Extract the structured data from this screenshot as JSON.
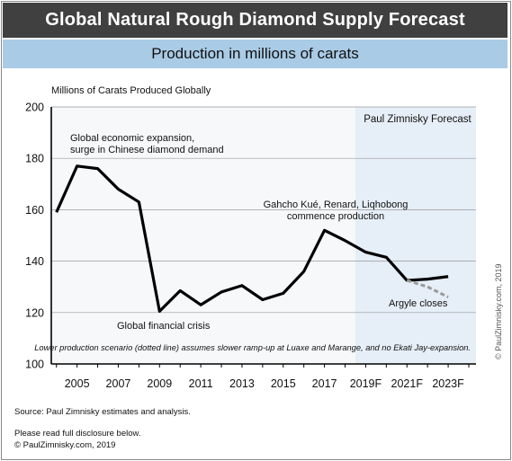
{
  "header": {
    "title": "Global Natural Rough Diamond Supply Forecast",
    "subtitle": "Production in millions of carats"
  },
  "chart_data": {
    "type": "line",
    "title": "Global Natural Rough Diamond Supply Forecast",
    "subtitle": "Production in millions of carats",
    "ylabel": "Millions of Carats Produced Globally",
    "xlabel": "",
    "ylim": [
      100,
      200
    ],
    "yticks": [
      100,
      120,
      140,
      160,
      180,
      200
    ],
    "xticks": [
      "2005",
      "2007",
      "2009",
      "2011",
      "2013",
      "2015",
      "2017",
      "2019F",
      "2021F",
      "2023F"
    ],
    "grid": "horizontal",
    "forecast_region_label": "Paul Zimnisky Forecast",
    "forecast_start": 2018.5,
    "x": [
      2004,
      2005,
      2006,
      2007,
      2008,
      2009,
      2010,
      2011,
      2012,
      2013,
      2014,
      2015,
      2016,
      2017,
      2018,
      2019,
      2020,
      2021,
      2022,
      2023
    ],
    "series": [
      {
        "values": [
          159,
          177,
          176,
          168,
          163,
          120.5,
          128.5,
          123,
          128,
          130.5,
          125,
          127.5,
          136,
          152,
          148,
          143.5,
          141.5,
          132.5,
          133,
          134
        ]
      },
      {
        "style": "dotted",
        "x": [
          2021,
          2022,
          2023
        ],
        "values": [
          132.5,
          130,
          126
        ]
      }
    ],
    "annotations": [
      {
        "lines": [
          "Global economic expansion,",
          "surge in Chinese diamond demand"
        ]
      },
      {
        "lines": [
          "Global financial crisis"
        ]
      },
      {
        "lines": [
          "Gahcho Kué, Renard, Liqhobong",
          "commence production"
        ]
      },
      {
        "lines": [
          "Argyle closes"
        ]
      }
    ],
    "footnote": "Lower production scenario (dotted line) assumes slower ramp-up at Luaxe and Marange, and no Ekati Jay-expansion."
  },
  "footer": {
    "source": "Source: Paul Zimnisky estimates and analysis.",
    "disclosure": "Please read full disclosure below.",
    "copyright": "© PaulZimnisky.com, 2019",
    "vertical_copyright": "© PaulZimnisky.com, 2019"
  },
  "colors": {
    "title_bar": "#404040",
    "subtitle_bar": "#a9cbe6",
    "forecast_shade": "#e6eef7",
    "main_line": "#000000",
    "dotted_line": "#9a9a9a"
  }
}
